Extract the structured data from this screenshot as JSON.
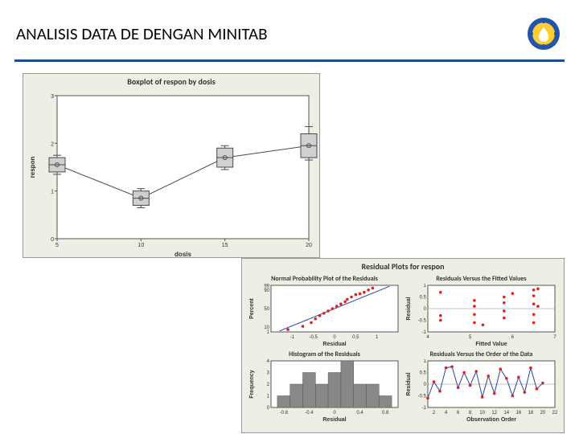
{
  "header": {
    "title": "ANALISIS DATA DE DENGAN MINITAB"
  },
  "boxplot": {
    "title": "Boxplot of respon by dosis",
    "xlabel": "dosis",
    "ylabel": "respon",
    "xlim": [
      5,
      20
    ],
    "ylim": [
      0,
      3
    ],
    "xticks": [
      5,
      10,
      15,
      20
    ],
    "yticks": [
      0,
      1,
      2,
      3
    ],
    "bg_color": "#eeeee4",
    "plot_bg": "#ffffff",
    "box_fill": "#d0d0d0",
    "box_border": "#4a4a4a",
    "mean_marker": "#4a4a4a",
    "line_color": "#4a4a4a",
    "boxes": [
      {
        "x": 5,
        "q1": 1.4,
        "med": 1.55,
        "q3": 1.7,
        "lo": 1.35,
        "hi": 1.75,
        "mean": 1.55
      },
      {
        "x": 10,
        "q1": 0.7,
        "med": 0.85,
        "q3": 1.0,
        "lo": 0.65,
        "hi": 1.05,
        "mean": 0.85
      },
      {
        "x": 15,
        "q1": 1.5,
        "med": 1.7,
        "q3": 1.9,
        "lo": 1.45,
        "hi": 1.95,
        "mean": 1.7
      },
      {
        "x": 20,
        "q1": 1.7,
        "med": 1.95,
        "q3": 2.2,
        "lo": 1.65,
        "hi": 2.35,
        "mean": 1.95
      }
    ]
  },
  "residual": {
    "title": "Residual Plots for respon",
    "panel_bg": "#eeeee4",
    "plot_bg": "#ffffff",
    "point_color": "#dd2222",
    "line_color": "#2244aa",
    "bar_color": "#888888",
    "npp": {
      "title": "Normal Probability Plot of the Residuals",
      "xlabel": "Residual",
      "ylabel": "Percent",
      "xlim": [
        -1.5,
        1.5
      ],
      "xticks": [
        -1.0,
        -0.5,
        0.0,
        0.5,
        1.0
      ],
      "yticks": [
        1,
        10,
        50,
        90,
        99
      ],
      "points": [
        [
          -1.1,
          5
        ],
        [
          -0.75,
          12
        ],
        [
          -0.55,
          20
        ],
        [
          -0.45,
          28
        ],
        [
          -0.35,
          35
        ],
        [
          -0.25,
          40
        ],
        [
          -0.15,
          45
        ],
        [
          -0.05,
          50
        ],
        [
          0.05,
          55
        ],
        [
          0.15,
          60
        ],
        [
          0.25,
          65
        ],
        [
          0.3,
          70
        ],
        [
          0.4,
          75
        ],
        [
          0.5,
          80
        ],
        [
          0.6,
          82
        ],
        [
          0.7,
          85
        ],
        [
          0.8,
          90
        ],
        [
          0.9,
          94
        ]
      ],
      "refline": [
        [
          -1.3,
          2
        ],
        [
          1.3,
          98
        ]
      ]
    },
    "rvf": {
      "title": "Residuals Versus the Fitted Values",
      "xlabel": "Fitted Value",
      "ylabel": "Residual",
      "xlim": [
        4,
        7
      ],
      "xticks": [
        4,
        5,
        6,
        7
      ],
      "ylim": [
        -1,
        1
      ],
      "yticks": [
        -1,
        -0.5,
        0.0,
        0.5,
        1.0
      ],
      "points": [
        [
          4.3,
          0.7
        ],
        [
          4.3,
          -0.3
        ],
        [
          4.3,
          -0.5
        ],
        [
          5.1,
          0.35
        ],
        [
          5.1,
          0.1
        ],
        [
          5.1,
          -0.25
        ],
        [
          5.1,
          -0.6
        ],
        [
          5.3,
          -0.7
        ],
        [
          5.8,
          0.5
        ],
        [
          5.8,
          0.25
        ],
        [
          5.8,
          -0.1
        ],
        [
          5.8,
          -0.4
        ],
        [
          6.0,
          0.65
        ],
        [
          6.5,
          0.8
        ],
        [
          6.5,
          0.55
        ],
        [
          6.5,
          0.2
        ],
        [
          6.5,
          -0.25
        ],
        [
          6.5,
          -0.6
        ],
        [
          6.6,
          0.85
        ],
        [
          6.6,
          0.1
        ]
      ]
    },
    "hist": {
      "title": "Histogram of the Residuals",
      "xlabel": "Residual",
      "ylabel": "Frequency",
      "xlim": [
        -1.0,
        1.0
      ],
      "xticks": [
        -0.8,
        -0.4,
        0.0,
        0.4,
        0.8
      ],
      "ylim": [
        0,
        4
      ],
      "yticks": [
        0,
        1,
        2,
        3,
        4
      ],
      "bars": [
        {
          "x": -0.8,
          "h": 1
        },
        {
          "x": -0.6,
          "h": 2
        },
        {
          "x": -0.4,
          "h": 3
        },
        {
          "x": -0.2,
          "h": 2
        },
        {
          "x": 0.0,
          "h": 3
        },
        {
          "x": 0.2,
          "h": 4
        },
        {
          "x": 0.4,
          "h": 2
        },
        {
          "x": 0.6,
          "h": 2
        },
        {
          "x": 0.8,
          "h": 1
        }
      ],
      "bar_width": 0.2
    },
    "rvo": {
      "title": "Residuals Versus the Order of the Data",
      "xlabel": "Observation Order",
      "ylabel": "Residual",
      "xlim": [
        1,
        22
      ],
      "xticks": [
        2,
        4,
        6,
        8,
        10,
        12,
        14,
        16,
        18,
        20,
        22
      ],
      "ylim": [
        -1,
        1
      ],
      "yticks": [
        -1,
        -0.5,
        0.0,
        0.5,
        1.0
      ],
      "points": [
        [
          1,
          -0.6
        ],
        [
          2,
          0.1
        ],
        [
          3,
          -0.3
        ],
        [
          4,
          0.7
        ],
        [
          5,
          0.75
        ],
        [
          6,
          -0.15
        ],
        [
          7,
          0.5
        ],
        [
          8,
          -0.05
        ],
        [
          9,
          0.55
        ],
        [
          10,
          -0.55
        ],
        [
          11,
          0.35
        ],
        [
          12,
          -0.4
        ],
        [
          13,
          0.65
        ],
        [
          14,
          0.25
        ],
        [
          15,
          -0.5
        ],
        [
          16,
          0.3
        ],
        [
          17,
          -0.35
        ],
        [
          18,
          0.7
        ],
        [
          19,
          -0.2
        ],
        [
          20,
          0.05
        ]
      ]
    }
  },
  "colors": {
    "header_rule": "#1e4e8c"
  }
}
